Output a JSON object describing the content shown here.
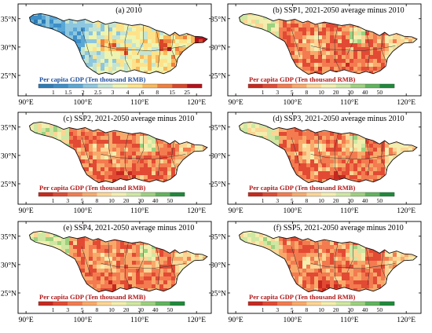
{
  "figure": {
    "panels": [
      {
        "title": "(a) 2010",
        "scheme": "base"
      },
      {
        "title": "(b) SSP1, 2021-2050 average minus 2010",
        "scheme": "diff"
      },
      {
        "title": "(c) SSP2, 2021-2050 average minus 2010",
        "scheme": "diff"
      },
      {
        "title": "(d) SSP3, 2021-2050 average minus 2010",
        "scheme": "diff"
      },
      {
        "title": "(e) SSP4, 2021-2050 average minus 2010",
        "scheme": "diff"
      },
      {
        "title": "(f) SSP5, 2021-2050 average minus 2010",
        "scheme": "diff"
      }
    ],
    "x_ticks": [
      "90°E",
      "100°E",
      "110°E",
      "120°E"
    ],
    "y_ticks": [
      "35°N",
      "30°N",
      "25°N"
    ],
    "legend_title": "Per capita GDP (Ten thousand RMB)",
    "legends": {
      "base": {
        "labels": [
          "1",
          "1.5",
          "2",
          "2.5",
          "3",
          "4",
          "6",
          "8",
          "15",
          "25"
        ],
        "colors": [
          "#2c7bb6",
          "#3c8ec8",
          "#5aa7d6",
          "#8dc7df",
          "#c4e4d2",
          "#edf4b0",
          "#fde28a",
          "#f9b85b",
          "#f07f3d",
          "#d94628",
          "#b5121b"
        ]
      },
      "diff": {
        "labels": [
          "1",
          "3",
          "5",
          "8",
          "10",
          "20",
          "30",
          "40",
          "50"
        ],
        "colors": [
          "#c7281e",
          "#e24a33",
          "#f37b4f",
          "#f8a96a",
          "#fcd595",
          "#f3eeae",
          "#cfe7a2",
          "#9dd17f",
          "#5fb45c",
          "#1f8a3a"
        ]
      }
    }
  }
}
